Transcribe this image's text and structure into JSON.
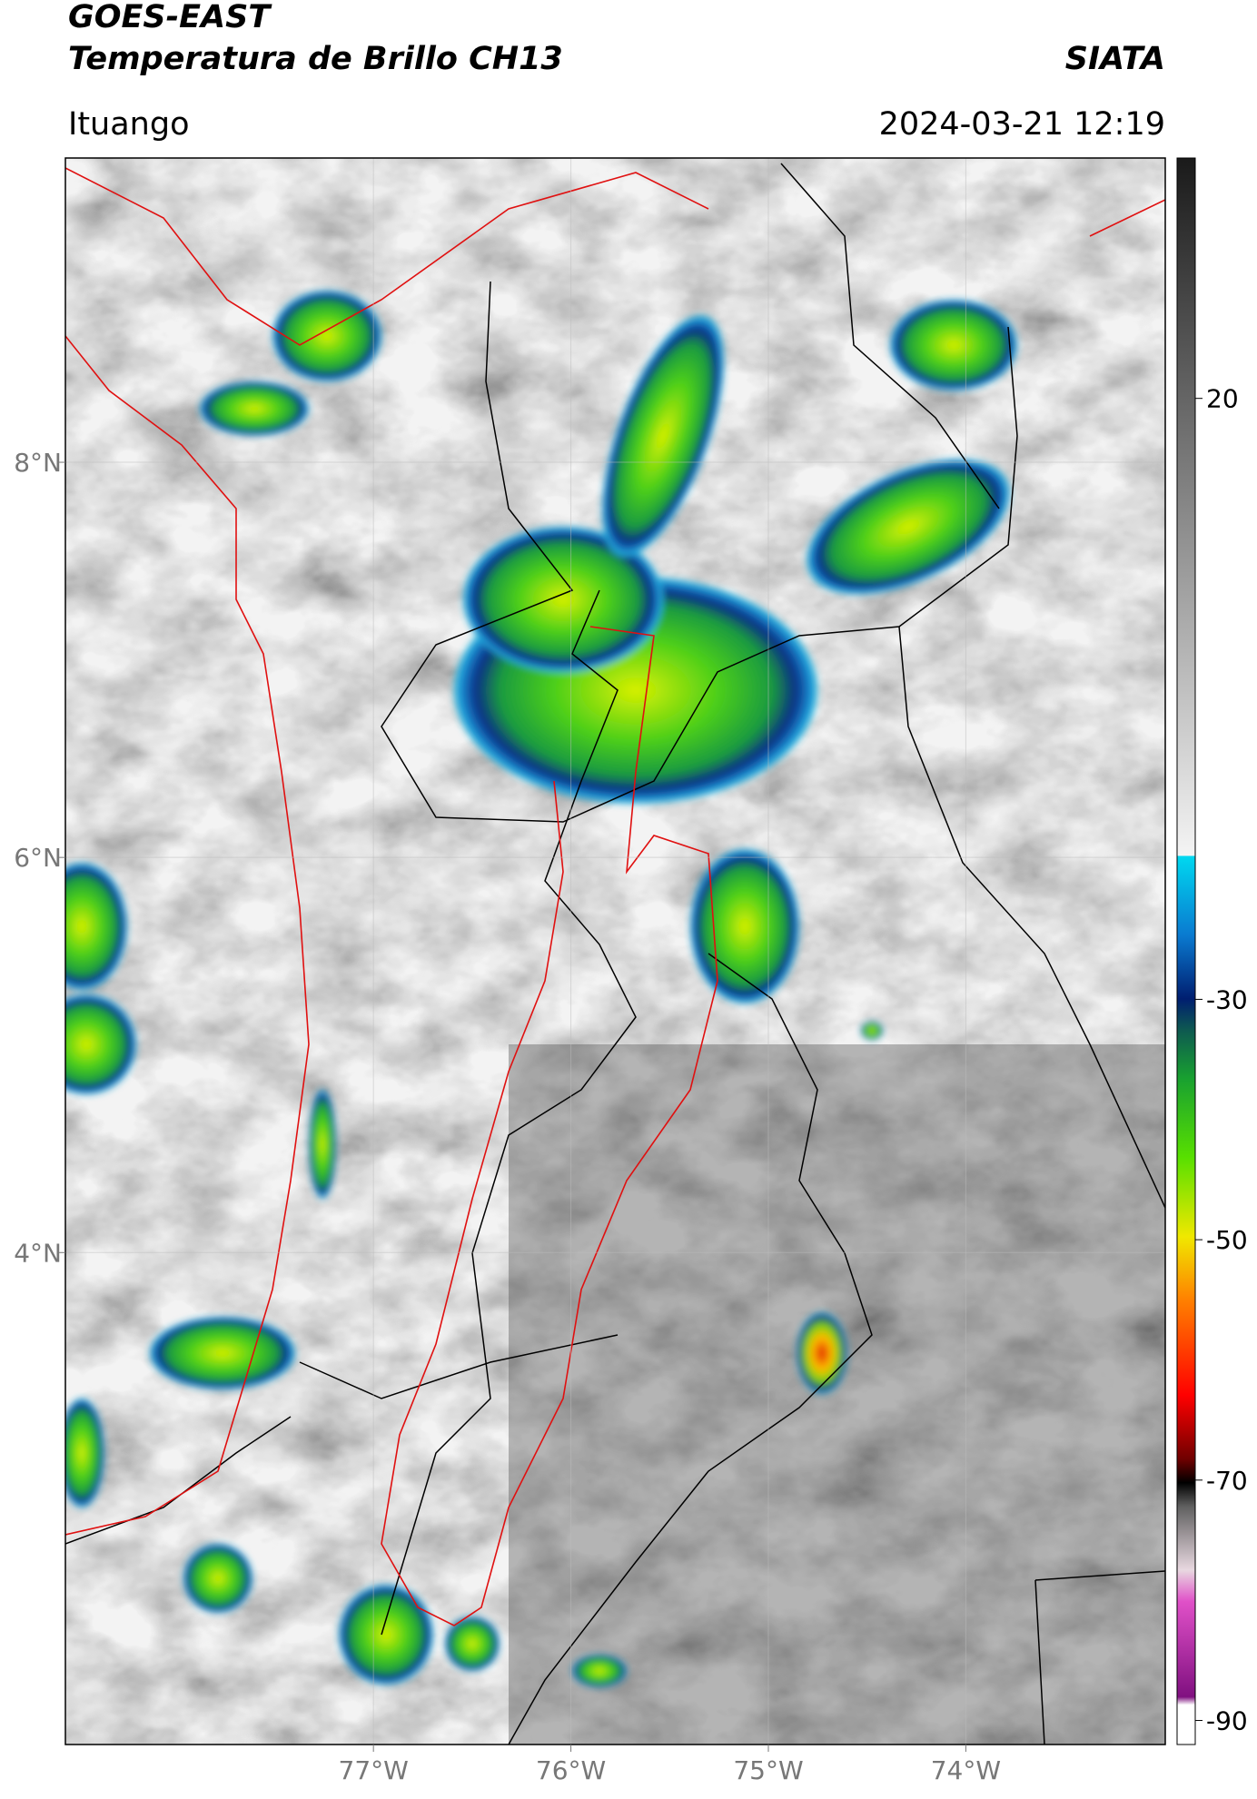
{
  "header": {
    "satellite": "GOES-EAST",
    "product": "Temperatura de Brillo CH13",
    "agency": "SIATA",
    "location": "Ituango",
    "timestamp": "2024-03-21 12:19"
  },
  "map": {
    "xlim": [
      -78.56,
      -72.99
    ],
    "ylim": [
      1.51,
      9.54
    ],
    "xticks": [
      {
        "value": -77,
        "label": "77°W"
      },
      {
        "value": -76,
        "label": "76°W"
      },
      {
        "value": -75,
        "label": "75°W"
      },
      {
        "value": -74,
        "label": "74°W"
      }
    ],
    "yticks": [
      {
        "value": 8,
        "label": "8°N"
      },
      {
        "value": 6,
        "label": "6°N"
      },
      {
        "value": 4,
        "label": "4°N"
      }
    ]
  },
  "colorbar": {
    "lim": [
      -92,
      40
    ],
    "ticks": [
      20,
      -30,
      -50,
      -70,
      -90
    ]
  }
}
